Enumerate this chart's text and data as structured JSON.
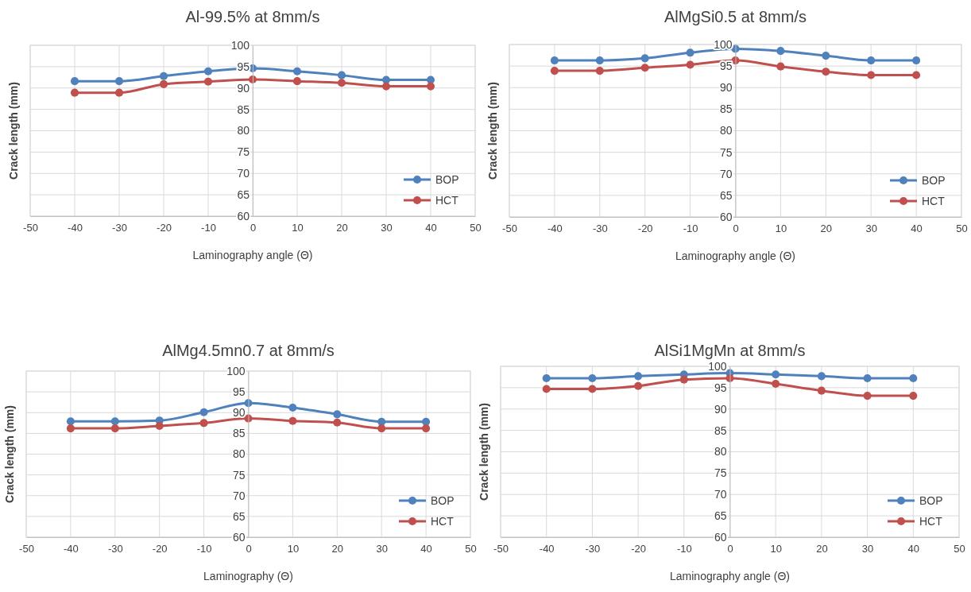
{
  "chart_data": [
    {
      "type": "line",
      "title": "Al-99.5% at 8mm/s",
      "xlabel": "Laminography angle (Θ)",
      "ylabel": "Crack length (mm)",
      "x": [
        -40,
        -30,
        -20,
        -10,
        0,
        10,
        20,
        30,
        40
      ],
      "xlim": [
        -50,
        50
      ],
      "xticks": [
        -50,
        -40,
        -30,
        -20,
        -10,
        0,
        10,
        20,
        30,
        40,
        50
      ],
      "ylim": [
        60,
        100
      ],
      "yticks": [
        60,
        65,
        70,
        75,
        80,
        85,
        90,
        95,
        100
      ],
      "grid": true,
      "legend": "bottom right",
      "marker": "circle",
      "series": [
        {
          "name": "BOP",
          "color": "#4f81bd",
          "values": [
            91.6,
            91.6,
            92.8,
            93.9,
            94.6,
            93.9,
            93.0,
            91.9,
            91.9
          ]
        },
        {
          "name": "HCT",
          "color": "#c0504d",
          "values": [
            88.9,
            88.9,
            90.9,
            91.5,
            92.0,
            91.6,
            91.2,
            90.4,
            90.4
          ]
        }
      ]
    },
    {
      "type": "line",
      "title": "AlMgSi0.5 at 8mm/s",
      "xlabel": "Laminography angle (Θ)",
      "ylabel": "Crack length (mm)",
      "x": [
        -40,
        -30,
        -20,
        -10,
        0,
        10,
        20,
        30,
        40
      ],
      "xlim": [
        -50,
        50
      ],
      "xticks": [
        -50,
        -40,
        -30,
        -20,
        -10,
        0,
        10,
        20,
        30,
        40,
        50
      ],
      "ylim": [
        60,
        100
      ],
      "yticks": [
        60,
        65,
        70,
        75,
        80,
        85,
        90,
        95,
        100
      ],
      "grid": true,
      "legend": "bottom right",
      "marker": "circle",
      "series": [
        {
          "name": "BOP",
          "color": "#4f81bd",
          "values": [
            96.3,
            96.3,
            96.8,
            98.1,
            99.0,
            98.5,
            97.4,
            96.3,
            96.3
          ]
        },
        {
          "name": "HCT",
          "color": "#c0504d",
          "values": [
            93.9,
            93.9,
            94.6,
            95.3,
            96.3,
            94.9,
            93.7,
            92.9,
            92.9
          ]
        }
      ]
    },
    {
      "type": "line",
      "title": "AlMg4.5mn0.7 at 8mm/s",
      "xlabel": "Laminography (Θ)",
      "ylabel": "Crack length (mm)",
      "x": [
        -40,
        -30,
        -20,
        -10,
        0,
        10,
        20,
        30,
        40
      ],
      "xlim": [
        -50,
        50
      ],
      "xticks": [
        -50,
        -40,
        -30,
        -20,
        -10,
        0,
        10,
        20,
        30,
        40,
        50
      ],
      "ylim": [
        60,
        100
      ],
      "yticks": [
        60,
        65,
        70,
        75,
        80,
        85,
        90,
        95,
        100
      ],
      "grid": true,
      "legend": "bottom right",
      "marker": "circle",
      "series": [
        {
          "name": "BOP",
          "color": "#4f81bd",
          "values": [
            87.9,
            87.9,
            88.1,
            90.1,
            92.3,
            91.2,
            89.6,
            87.8,
            87.8
          ]
        },
        {
          "name": "HCT",
          "color": "#c0504d",
          "values": [
            86.2,
            86.2,
            86.8,
            87.5,
            88.6,
            88.0,
            87.6,
            86.2,
            86.2
          ]
        }
      ]
    },
    {
      "type": "line",
      "title": "AlSi1MgMn at 8mm/s",
      "xlabel": "Laminography angle (Θ)",
      "ylabel": "Crack length (mm)",
      "x": [
        -40,
        -30,
        -20,
        -10,
        0,
        10,
        20,
        30,
        40
      ],
      "xlim": [
        -50,
        50
      ],
      "xticks": [
        -50,
        -40,
        -30,
        -20,
        -10,
        0,
        10,
        20,
        30,
        40,
        50
      ],
      "ylim": [
        60,
        100
      ],
      "yticks": [
        60,
        65,
        70,
        75,
        80,
        85,
        90,
        95,
        100
      ],
      "grid": true,
      "legend": "bottom right",
      "marker": "circle",
      "series": [
        {
          "name": "BOP",
          "color": "#4f81bd",
          "values": [
            97.2,
            97.2,
            97.7,
            98.1,
            98.4,
            98.1,
            97.7,
            97.2,
            97.2
          ]
        },
        {
          "name": "HCT",
          "color": "#c0504d",
          "values": [
            94.7,
            94.7,
            95.4,
            96.9,
            97.2,
            95.9,
            94.3,
            93.1,
            93.1
          ]
        }
      ]
    }
  ]
}
